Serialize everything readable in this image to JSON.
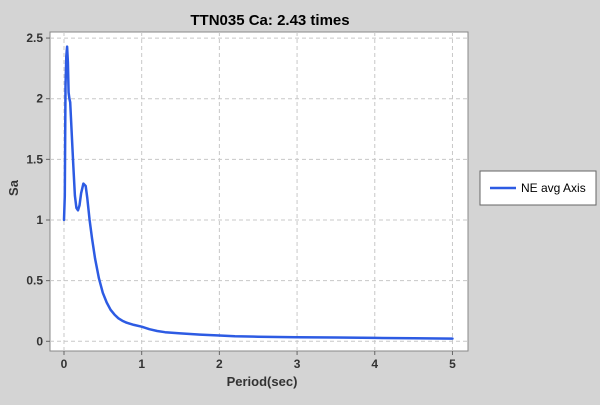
{
  "chart_data": {
    "type": "line",
    "title": "TTN035 Ca: 2.43 times",
    "xlabel": "Period(sec)",
    "ylabel": "Sa",
    "xlim": [
      -0.18,
      5.2
    ],
    "ylim": [
      -0.08,
      2.55
    ],
    "xticks": [
      0,
      1,
      2,
      3,
      4,
      5
    ],
    "xtick_labels": [
      "0",
      "1",
      "2",
      "3",
      "4",
      "5"
    ],
    "yticks": [
      0,
      0.5,
      1,
      1.5,
      2,
      2.5
    ],
    "ytick_labels": [
      "0",
      "0.5",
      "1",
      "1.5",
      "2",
      "2.5"
    ],
    "grid": true,
    "legend_position": "right",
    "series": [
      {
        "name": "NE avg Axis",
        "color": "#2d5be3",
        "x": [
          0.0,
          0.01,
          0.02,
          0.03,
          0.04,
          0.05,
          0.06,
          0.07,
          0.08,
          0.1,
          0.12,
          0.14,
          0.16,
          0.18,
          0.2,
          0.22,
          0.25,
          0.28,
          0.3,
          0.33,
          0.36,
          0.4,
          0.45,
          0.5,
          0.55,
          0.6,
          0.65,
          0.7,
          0.75,
          0.8,
          0.9,
          1.0,
          1.1,
          1.2,
          1.3,
          1.5,
          1.75,
          2.0,
          2.2,
          2.5,
          3.0,
          3.5,
          4.0,
          4.5,
          5.0
        ],
        "y": [
          1.0,
          1.2,
          2.1,
          2.35,
          2.43,
          2.3,
          2.05,
          2.0,
          1.97,
          1.7,
          1.45,
          1.2,
          1.1,
          1.08,
          1.12,
          1.22,
          1.3,
          1.28,
          1.18,
          1.0,
          0.85,
          0.68,
          0.52,
          0.4,
          0.32,
          0.26,
          0.22,
          0.19,
          0.17,
          0.155,
          0.135,
          0.12,
          0.1,
          0.085,
          0.075,
          0.065,
          0.055,
          0.048,
          0.042,
          0.038,
          0.034,
          0.031,
          0.028,
          0.025,
          0.022
        ]
      }
    ]
  }
}
